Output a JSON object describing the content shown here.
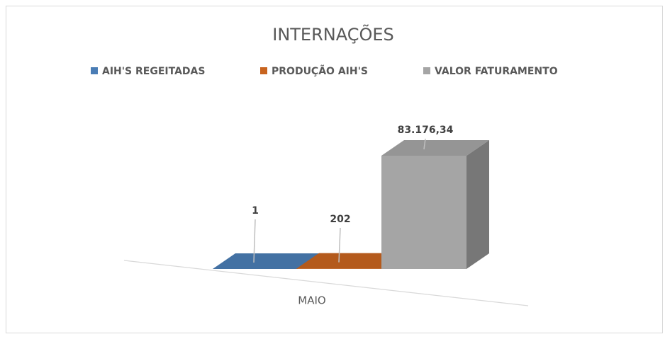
{
  "chart_data": {
    "type": "bar3d",
    "title": "INTERNAÇÕES",
    "categories": [
      "MAIO"
    ],
    "series": [
      {
        "name": "AIH'S REGEITADAS",
        "color": "#4a7db5",
        "values": [
          1
        ],
        "value_labels": [
          "1"
        ]
      },
      {
        "name": "PRODUÇÃO AIH'S",
        "color": "#c8641f",
        "values": [
          202
        ],
        "value_labels": [
          "202"
        ]
      },
      {
        "name": "VALOR FATURAMENTO",
        "color": "#a5a5a5",
        "values": [
          83176.34
        ],
        "value_labels": [
          "83.176,34"
        ]
      }
    ]
  }
}
